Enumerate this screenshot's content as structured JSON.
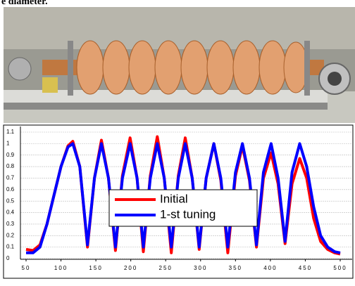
{
  "text_above": "e diameter.",
  "chart_data": {
    "type": "line",
    "x": [
      50,
      60,
      70,
      80,
      90,
      100,
      110,
      117,
      127,
      138,
      148,
      158,
      168,
      178,
      188,
      199,
      209,
      218,
      228,
      238,
      248,
      258,
      268,
      278,
      288,
      298,
      308,
      319,
      329,
      339,
      350,
      360,
      370,
      380,
      390,
      401,
      411,
      421,
      431,
      442,
      452,
      462,
      472,
      482,
      492,
      500
    ],
    "series": [
      {
        "name": "Initial",
        "color": "#ff0000",
        "values": [
          0.08,
          0.07,
          0.12,
          0.3,
          0.55,
          0.8,
          0.98,
          1.02,
          0.8,
          0.1,
          0.7,
          1.03,
          0.7,
          0.07,
          0.72,
          1.05,
          0.7,
          0.06,
          0.72,
          1.06,
          0.7,
          0.05,
          0.72,
          1.05,
          0.7,
          0.08,
          0.7,
          1.0,
          0.68,
          0.05,
          0.72,
          0.98,
          0.68,
          0.1,
          0.7,
          0.92,
          0.65,
          0.13,
          0.65,
          0.87,
          0.7,
          0.35,
          0.15,
          0.08,
          0.05,
          0.04
        ]
      },
      {
        "name": "1-st tuning",
        "color": "#0000ff",
        "values": [
          0.05,
          0.05,
          0.1,
          0.3,
          0.55,
          0.8,
          0.97,
          1.0,
          0.8,
          0.12,
          0.7,
          1.0,
          0.7,
          0.1,
          0.7,
          1.0,
          0.7,
          0.1,
          0.7,
          1.0,
          0.7,
          0.1,
          0.7,
          1.0,
          0.7,
          0.1,
          0.7,
          1.0,
          0.7,
          0.1,
          0.75,
          1.0,
          0.7,
          0.12,
          0.75,
          1.0,
          0.7,
          0.15,
          0.75,
          1.0,
          0.8,
          0.45,
          0.2,
          0.1,
          0.06,
          0.05
        ]
      }
    ],
    "xlim": [
      50,
      500
    ],
    "xticks": [
      50,
      100,
      150,
      200,
      250,
      300,
      350,
      400,
      450,
      500
    ],
    "ylim": [
      0,
      1.1
    ],
    "yticks": [
      0,
      0.1,
      0.2,
      0.3,
      0.4,
      0.5,
      0.6,
      0.7,
      0.8,
      0.9,
      1,
      1.1
    ],
    "grid": true,
    "legend": "center"
  }
}
